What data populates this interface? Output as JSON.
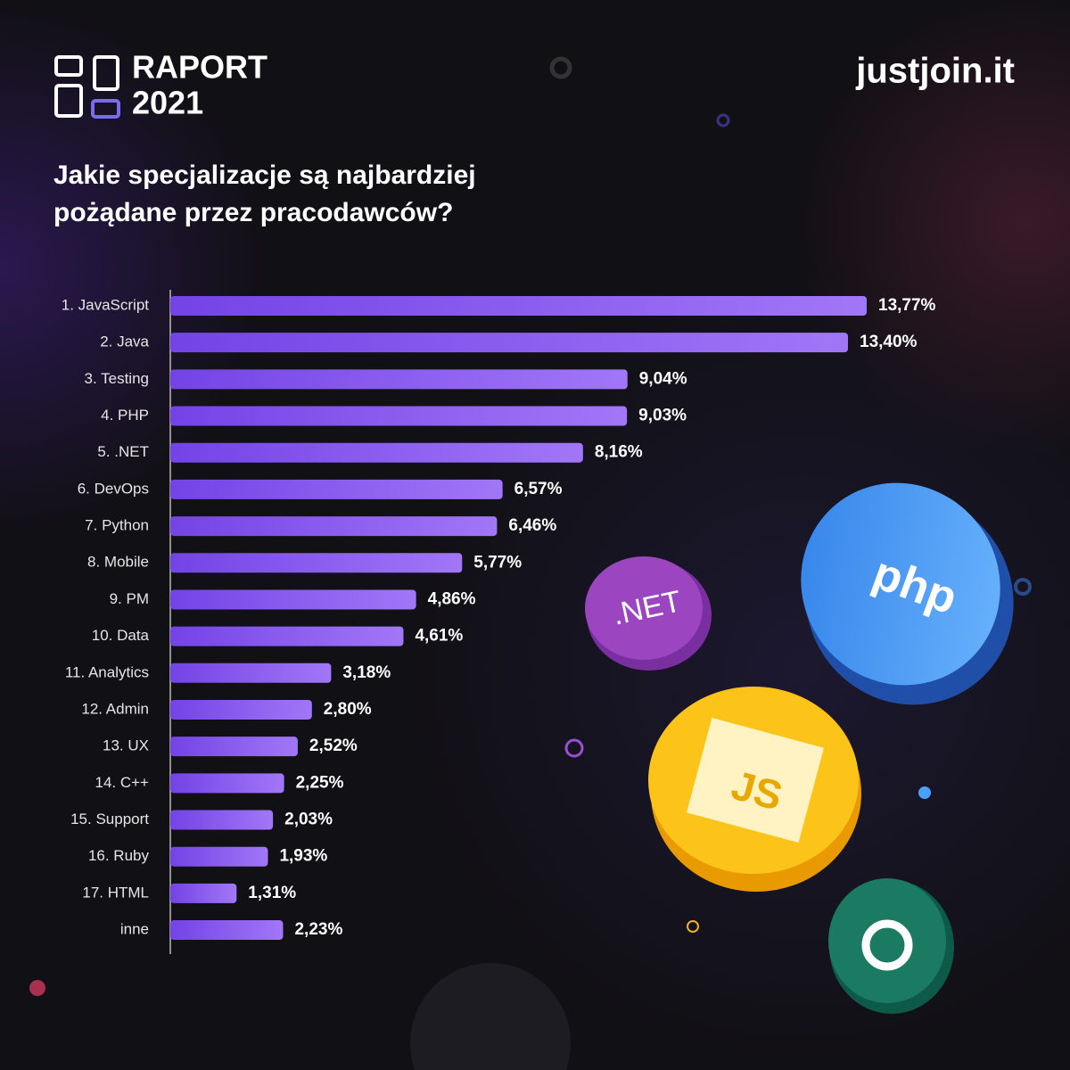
{
  "header": {
    "report_line1": "RAPORT",
    "report_line2": "2021",
    "brand": "justjoin.it"
  },
  "badges": [
    ".NET",
    "php",
    "JS"
  ],
  "chart_data": {
    "type": "bar",
    "orientation": "horizontal",
    "title": "Jakie specjalizacje są najbardziej pożądane przez pracodawców?",
    "categories": [
      "1. JavaScript",
      "2. Java",
      "3. Testing",
      "4. PHP",
      "5. .NET",
      "6. DevOps",
      "7. Python",
      "8. Mobile",
      "9. PM",
      "10. Data",
      "11. Analytics",
      "12. Admin",
      "13. UX",
      "14. C++",
      "15. Support",
      "16. Ruby",
      "17. HTML",
      "inne"
    ],
    "values": [
      13.77,
      13.4,
      9.04,
      9.03,
      8.16,
      6.57,
      6.46,
      5.77,
      4.86,
      4.61,
      3.18,
      2.8,
      2.52,
      2.25,
      2.03,
      1.93,
      1.31,
      2.23
    ],
    "value_labels": [
      "13,77%",
      "13,40%",
      "9,04%",
      "9,03%",
      "8,16%",
      "6,57%",
      "6,46%",
      "5,77%",
      "4,86%",
      "4,61%",
      "3,18%",
      "2,80%",
      "2,52%",
      "2,25%",
      "2,03%",
      "1,93%",
      "1,31%",
      "2,23%"
    ],
    "color": "#8a5cf0"
  }
}
